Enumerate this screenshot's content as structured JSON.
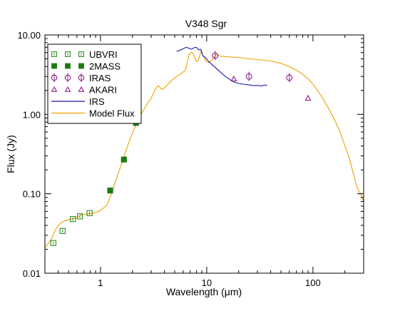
{
  "chart_data": {
    "type": "scatter",
    "title": "V348 Sgr",
    "xlabel": "Wavelength (μm)",
    "ylabel": "Flux (Jy)",
    "xscale": "log",
    "yscale": "log",
    "xlim": [
      0.3,
      300
    ],
    "ylim": [
      0.01,
      10
    ],
    "x_ticks": [
      {
        "value": 1,
        "label": "1"
      },
      {
        "value": 10,
        "label": "10"
      },
      {
        "value": 100,
        "label": "100"
      }
    ],
    "y_ticks": [
      {
        "value": 0.01,
        "label": "0.01"
      },
      {
        "value": 0.1,
        "label": "0.10"
      },
      {
        "value": 1,
        "label": "1.00"
      },
      {
        "value": 10,
        "label": "10.00"
      }
    ],
    "grid": false,
    "legend_position": "top-left",
    "series": [
      {
        "name": "UBVRI",
        "kind": "points",
        "marker": "open-square",
        "color": "#2e8b20",
        "points": [
          [
            0.36,
            0.024
          ],
          [
            0.44,
            0.034
          ],
          [
            0.55,
            0.048
          ],
          [
            0.64,
            0.052
          ],
          [
            0.79,
            0.057
          ]
        ]
      },
      {
        "name": "2MASS",
        "kind": "points",
        "marker": "filled-square",
        "color": "#1f7a14",
        "points": [
          [
            1.235,
            0.11
          ],
          [
            1.662,
            0.27
          ],
          [
            2.159,
            0.78
          ]
        ]
      },
      {
        "name": "IRAS",
        "kind": "points",
        "marker": "open-circle",
        "color": "#8b1a8b",
        "points": [
          [
            12,
            5.5
          ],
          [
            25,
            3.0
          ],
          [
            60,
            2.9
          ]
        ]
      },
      {
        "name": "AKARI",
        "kind": "points",
        "marker": "open-triangle",
        "color": "#8b1a8b",
        "points": [
          [
            18,
            2.8
          ],
          [
            90,
            1.6
          ]
        ]
      },
      {
        "name": "IRS",
        "kind": "line",
        "color": "#1a1aa8",
        "points": [
          [
            5.2,
            6.2
          ],
          [
            5.6,
            6.4
          ],
          [
            6.0,
            6.7
          ],
          [
            6.4,
            7.0
          ],
          [
            6.8,
            6.8
          ],
          [
            7.2,
            6.6
          ],
          [
            7.6,
            6.9
          ],
          [
            8.0,
            7.0
          ],
          [
            8.4,
            6.5
          ],
          [
            8.8,
            6.6
          ],
          [
            9.2,
            5.5
          ],
          [
            9.7,
            5.2
          ],
          [
            10.5,
            4.6
          ],
          [
            11.3,
            4.2
          ],
          [
            12.3,
            3.8
          ],
          [
            13.5,
            3.4
          ],
          [
            15.0,
            3.0
          ],
          [
            16.5,
            2.75
          ],
          [
            18.0,
            2.55
          ],
          [
            20.0,
            2.45
          ],
          [
            22.0,
            2.4
          ],
          [
            25.0,
            2.35
          ],
          [
            28.0,
            2.3
          ],
          [
            30.0,
            2.32
          ],
          [
            33.0,
            2.28
          ],
          [
            35.0,
            2.35
          ],
          [
            37.0,
            2.3
          ]
        ]
      },
      {
        "name": "Model Flux",
        "kind": "line",
        "color": "#f0a000",
        "points": [
          [
            0.3,
            0.021
          ],
          [
            0.34,
            0.026
          ],
          [
            0.38,
            0.036
          ],
          [
            0.42,
            0.043
          ],
          [
            0.47,
            0.046
          ],
          [
            0.53,
            0.048
          ],
          [
            0.6,
            0.05
          ],
          [
            0.66,
            0.054
          ],
          [
            0.7,
            0.055
          ],
          [
            0.78,
            0.056
          ],
          [
            0.86,
            0.057
          ],
          [
            0.96,
            0.06
          ],
          [
            1.05,
            0.065
          ],
          [
            1.15,
            0.072
          ],
          [
            1.25,
            0.095
          ],
          [
            1.4,
            0.15
          ],
          [
            1.6,
            0.25
          ],
          [
            1.8,
            0.4
          ],
          [
            2.0,
            0.58
          ],
          [
            2.3,
            0.9
          ],
          [
            2.7,
            1.3
          ],
          [
            3.0,
            1.6
          ],
          [
            3.3,
            2.1
          ],
          [
            3.5,
            2.3
          ],
          [
            3.8,
            2.05
          ],
          [
            4.2,
            2.3
          ],
          [
            4.7,
            2.7
          ],
          [
            5.2,
            3.0
          ],
          [
            5.8,
            3.3
          ],
          [
            6.3,
            3.6
          ],
          [
            6.8,
            5.6
          ],
          [
            7.2,
            6.1
          ],
          [
            7.6,
            5.5
          ],
          [
            8.0,
            4.6
          ],
          [
            8.4,
            4.9
          ],
          [
            8.8,
            6.2
          ],
          [
            9.3,
            5.4
          ],
          [
            9.8,
            4.7
          ],
          [
            10.5,
            4.5
          ],
          [
            11.3,
            4.9
          ],
          [
            12.2,
            5.7
          ],
          [
            13.5,
            5.4
          ],
          [
            16.0,
            5.3
          ],
          [
            20.0,
            5.2
          ],
          [
            25.0,
            5.0
          ],
          [
            30.0,
            4.9
          ],
          [
            35.0,
            4.8
          ],
          [
            40.0,
            4.7
          ],
          [
            50.0,
            4.4
          ],
          [
            60.0,
            4.0
          ],
          [
            70.0,
            3.6
          ],
          [
            80.0,
            3.2
          ],
          [
            90.0,
            2.8
          ],
          [
            100.0,
            2.4
          ],
          [
            120.0,
            1.7
          ],
          [
            140.0,
            1.2
          ],
          [
            160.0,
            0.85
          ],
          [
            180.0,
            0.6
          ],
          [
            200.0,
            0.4
          ],
          [
            220.0,
            0.28
          ],
          [
            240.0,
            0.18
          ],
          [
            260.0,
            0.12
          ],
          [
            280.0,
            0.1
          ],
          [
            300.0,
            0.08
          ]
        ]
      }
    ]
  }
}
